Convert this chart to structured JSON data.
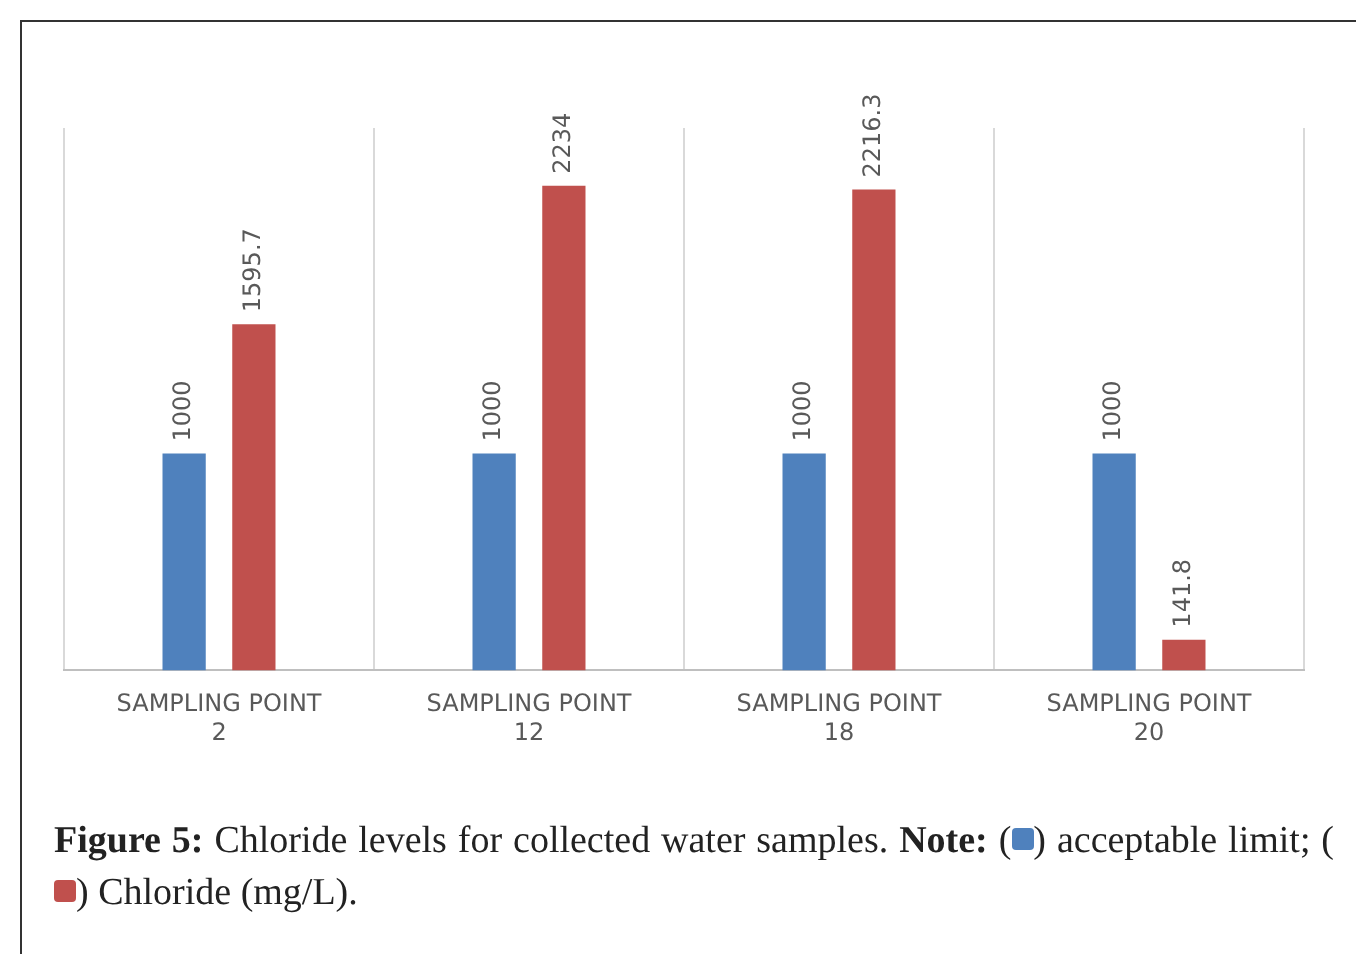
{
  "chart_data": {
    "type": "bar",
    "title": "Figure 5: Chloride levels for collected water samples.",
    "annotations": [
      "Note: (",
      ") acceptable limit; (",
      ") Chloride (mg/L)."
    ],
    "categories": [
      "SAMPLING POINT 2",
      "SAMPLING POINT 12",
      "SAMPLING POINT 18",
      "SAMPLING POINT 20"
    ],
    "series": [
      {
        "color": "#4f81bd",
        "values": [
          1000,
          1000,
          1000,
          1000
        ]
      },
      {
        "color": "#c0504d",
        "values": [
          1595.7,
          2234,
          2216.3,
          141.8
        ]
      }
    ],
    "data_labels": true,
    "grid": "x",
    "tick_labels": "x"
  }
}
